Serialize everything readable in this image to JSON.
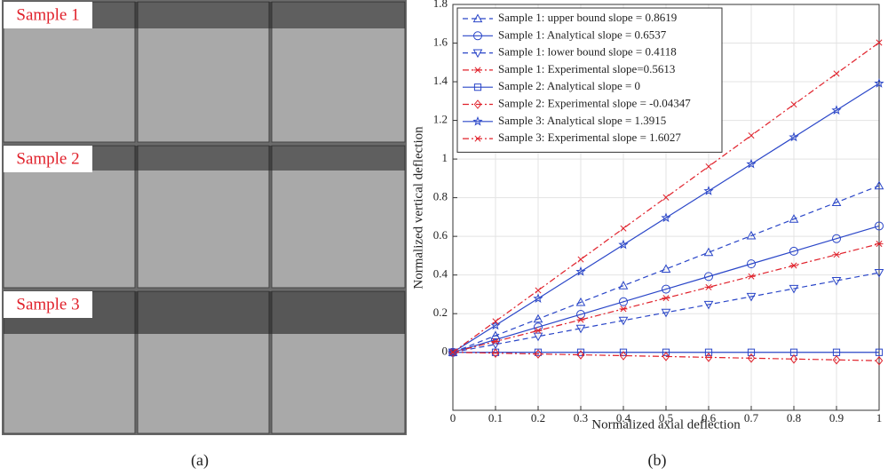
{
  "photos": {
    "labels": [
      "Sample 1",
      "Sample 2",
      "Sample 3"
    ],
    "caption": "(a)"
  },
  "chart_data": {
    "type": "line",
    "caption": "(b)",
    "x_label": "Normalized axial deflection",
    "y_label": "Normalized vertical deflection",
    "x": [
      0,
      0.1,
      0.2,
      0.3,
      0.4,
      0.5,
      0.6,
      0.7,
      0.8,
      0.9,
      1
    ],
    "xlim": [
      0,
      1
    ],
    "xticks": [
      0,
      0.1,
      0.2,
      0.3,
      0.4,
      0.5,
      0.6,
      0.7,
      0.8,
      0.9,
      1
    ],
    "ylim": [
      -0.3,
      1.8
    ],
    "yticks": [
      0,
      0.2,
      0.4,
      0.6,
      0.8,
      1,
      1.2,
      1.4,
      1.6,
      1.8
    ],
    "grid": true,
    "legend": "upper left",
    "series": [
      {
        "name": "Sample 1: upper bound slope = 0.8619",
        "color": "#2a46c8",
        "marker": "triangle-up",
        "dash": "dashed",
        "values": [
          0,
          0.0862,
          0.1724,
          0.2586,
          0.3448,
          0.431,
          0.5171,
          0.6033,
          0.6895,
          0.7757,
          0.8619
        ]
      },
      {
        "name": "Sample 1: Analytical slope = 0.6537",
        "color": "#2a46c8",
        "marker": "circle",
        "dash": "solid",
        "values": [
          0,
          0.0654,
          0.1307,
          0.1961,
          0.2615,
          0.3269,
          0.3922,
          0.4576,
          0.523,
          0.5883,
          0.6537
        ]
      },
      {
        "name": "Sample 1: lower bound slope = 0.4118",
        "color": "#2a46c8",
        "marker": "triangle-down",
        "dash": "dashed",
        "values": [
          0,
          0.0412,
          0.0824,
          0.1235,
          0.1647,
          0.2059,
          0.2471,
          0.2883,
          0.3294,
          0.3706,
          0.4118
        ]
      },
      {
        "name": "Sample 1: Experimental slope=0.5613",
        "color": "#e0202a",
        "marker": "asterisk",
        "dash": "dashdot",
        "values": [
          0,
          0.0561,
          0.1123,
          0.1684,
          0.2245,
          0.2807,
          0.3368,
          0.3929,
          0.449,
          0.5052,
          0.5613
        ]
      },
      {
        "name": "Sample 2: Analytical slope = 0",
        "color": "#2a46c8",
        "marker": "square",
        "dash": "solid",
        "values": [
          0,
          0,
          0,
          0,
          0,
          0,
          0,
          0,
          0,
          0,
          0
        ]
      },
      {
        "name": "Sample 2: Experimental slope = -0.04347",
        "color": "#e0202a",
        "marker": "diamond",
        "dash": "dashdot",
        "values": [
          0,
          -0.0043,
          -0.0087,
          -0.013,
          -0.0174,
          -0.0217,
          -0.0261,
          -0.0304,
          -0.0348,
          -0.0391,
          -0.0435
        ]
      },
      {
        "name": "Sample 3: Analytical slope = 1.3915",
        "color": "#2a46c8",
        "marker": "star",
        "dash": "solid",
        "values": [
          0,
          0.1392,
          0.2783,
          0.4175,
          0.5566,
          0.6958,
          0.8349,
          0.9741,
          1.1132,
          1.2524,
          1.3915
        ]
      },
      {
        "name": "Sample 3: Experimental slope = 1.6027",
        "color": "#e0202a",
        "marker": "x",
        "dash": "dashdot",
        "values": [
          0,
          0.1603,
          0.3205,
          0.4808,
          0.6411,
          0.8014,
          0.9616,
          1.1219,
          1.2822,
          1.4424,
          1.6027
        ]
      }
    ]
  }
}
